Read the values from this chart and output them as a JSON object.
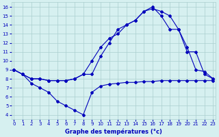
{
  "xlabel": "Graphe des températures (°c)",
  "background_color": "#d6f0f0",
  "line_color": "#0000bb",
  "xlim": [
    -0.3,
    23.3
  ],
  "ylim": [
    3.5,
    16.5
  ],
  "xticks": [
    0,
    1,
    2,
    3,
    4,
    5,
    6,
    7,
    8,
    9,
    10,
    11,
    12,
    13,
    14,
    15,
    16,
    17,
    18,
    19,
    20,
    21,
    22,
    23
  ],
  "yticks": [
    4,
    5,
    6,
    7,
    8,
    9,
    10,
    11,
    12,
    13,
    14,
    15,
    16
  ],
  "s1_x": [
    0,
    1,
    2,
    3,
    4,
    5,
    6,
    7,
    8,
    9,
    10,
    11,
    12,
    13,
    14,
    15,
    16,
    17,
    18,
    19,
    20,
    21,
    22,
    23
  ],
  "s1_y": [
    9.0,
    8.5,
    7.5,
    7.0,
    6.5,
    5.5,
    5.0,
    4.5,
    4.0,
    6.5,
    7.2,
    7.4,
    7.5,
    7.6,
    7.6,
    7.7,
    7.7,
    7.8,
    7.8,
    7.8,
    7.8,
    7.8,
    7.8,
    7.8
  ],
  "s2_x": [
    0,
    1,
    2,
    3,
    4,
    5,
    6,
    7,
    8,
    9,
    10,
    11,
    12,
    13,
    14,
    15,
    16,
    17,
    18,
    19,
    20,
    21,
    22,
    23
  ],
  "s2_y": [
    9.0,
    8.5,
    8.0,
    8.0,
    7.8,
    7.8,
    7.8,
    8.0,
    8.5,
    8.5,
    10.5,
    12.0,
    13.5,
    14.0,
    14.5,
    15.5,
    15.8,
    15.5,
    15.0,
    13.5,
    11.0,
    11.0,
    8.5,
    8.0
  ],
  "s3_x": [
    0,
    1,
    2,
    3,
    4,
    5,
    6,
    7,
    8,
    9,
    10,
    11,
    12,
    13,
    14,
    15,
    16,
    17,
    18,
    19,
    20,
    21,
    22,
    23
  ],
  "s3_y": [
    9.0,
    8.5,
    8.0,
    8.0,
    7.8,
    7.8,
    7.8,
    8.0,
    8.5,
    10.0,
    11.5,
    12.5,
    13.0,
    14.0,
    14.5,
    15.5,
    16.0,
    15.0,
    13.5,
    13.5,
    11.5,
    9.0,
    8.8,
    8.0
  ],
  "grid_color": "#aacece",
  "xlabel_color": "#0000bb",
  "tick_fontsize": 5,
  "xlabel_fontsize": 6
}
